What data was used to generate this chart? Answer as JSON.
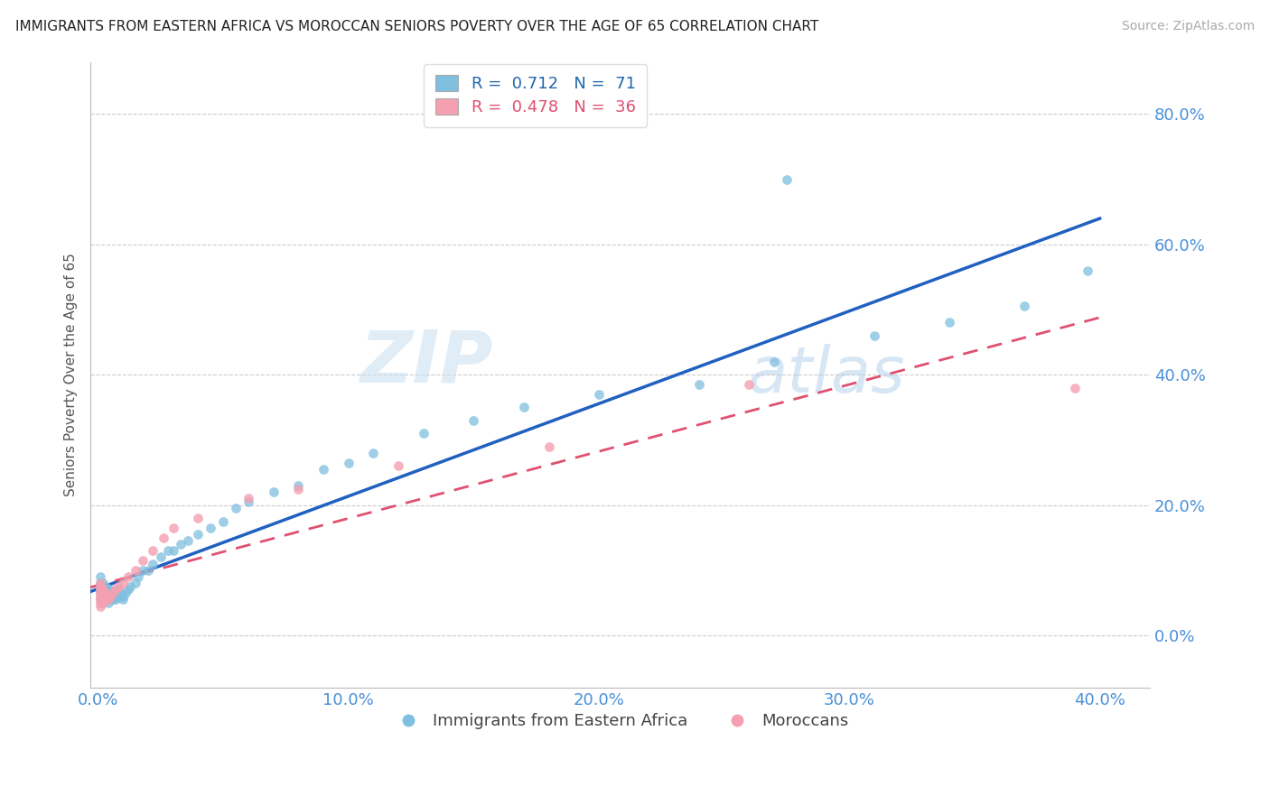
{
  "title": "IMMIGRANTS FROM EASTERN AFRICA VS MOROCCAN SENIORS POVERTY OVER THE AGE OF 65 CORRELATION CHART",
  "source": "Source: ZipAtlas.com",
  "ylabel": "Seniors Poverty Over the Age of 65",
  "watermark": "ZIPatlas",
  "series1_label": "Immigrants from Eastern Africa",
  "series2_label": "Moroccans",
  "series1_color": "#7fbfdf",
  "series2_color": "#f4a0b0",
  "series1_line_color": "#2060c0",
  "series2_line_color": "#e05070",
  "r1": 0.712,
  "n1": 71,
  "r2": 0.478,
  "n2": 36,
  "xlim": [
    -0.003,
    0.42
  ],
  "ylim": [
    -0.08,
    0.88
  ],
  "xticks": [
    0.0,
    0.1,
    0.2,
    0.3,
    0.4
  ],
  "yticks": [
    0.0,
    0.2,
    0.4,
    0.6,
    0.8
  ],
  "series1_x": [
    0.001,
    0.001,
    0.001,
    0.001,
    0.001,
    0.002,
    0.002,
    0.002,
    0.002,
    0.002,
    0.002,
    0.003,
    0.003,
    0.003,
    0.003,
    0.003,
    0.004,
    0.004,
    0.004,
    0.004,
    0.004,
    0.005,
    0.005,
    0.005,
    0.005,
    0.006,
    0.006,
    0.006,
    0.007,
    0.007,
    0.008,
    0.008,
    0.008,
    0.009,
    0.009,
    0.01,
    0.01,
    0.011,
    0.012,
    0.013,
    0.015,
    0.016,
    0.018,
    0.02,
    0.022,
    0.025,
    0.028,
    0.03,
    0.033,
    0.036,
    0.04,
    0.045,
    0.05,
    0.055,
    0.06,
    0.07,
    0.08,
    0.09,
    0.1,
    0.11,
    0.13,
    0.15,
    0.17,
    0.2,
    0.24,
    0.27,
    0.31,
    0.34,
    0.37,
    0.395,
    0.275
  ],
  "series1_y": [
    0.055,
    0.065,
    0.075,
    0.08,
    0.09,
    0.055,
    0.06,
    0.065,
    0.07,
    0.075,
    0.08,
    0.055,
    0.06,
    0.065,
    0.07,
    0.075,
    0.05,
    0.055,
    0.06,
    0.065,
    0.07,
    0.055,
    0.06,
    0.065,
    0.07,
    0.055,
    0.06,
    0.065,
    0.055,
    0.06,
    0.06,
    0.065,
    0.07,
    0.06,
    0.065,
    0.055,
    0.06,
    0.065,
    0.07,
    0.075,
    0.08,
    0.09,
    0.1,
    0.1,
    0.11,
    0.12,
    0.13,
    0.13,
    0.14,
    0.145,
    0.155,
    0.165,
    0.175,
    0.195,
    0.205,
    0.22,
    0.23,
    0.255,
    0.265,
    0.28,
    0.31,
    0.33,
    0.35,
    0.37,
    0.385,
    0.42,
    0.46,
    0.48,
    0.505,
    0.56,
    0.7
  ],
  "series2_x": [
    0.001,
    0.001,
    0.001,
    0.001,
    0.001,
    0.001,
    0.001,
    0.001,
    0.002,
    0.002,
    0.002,
    0.002,
    0.002,
    0.003,
    0.003,
    0.003,
    0.004,
    0.004,
    0.005,
    0.006,
    0.007,
    0.008,
    0.01,
    0.012,
    0.015,
    0.018,
    0.022,
    0.026,
    0.03,
    0.04,
    0.06,
    0.08,
    0.12,
    0.18,
    0.26,
    0.39
  ],
  "series2_y": [
    0.045,
    0.05,
    0.055,
    0.06,
    0.065,
    0.07,
    0.075,
    0.08,
    0.05,
    0.055,
    0.06,
    0.065,
    0.07,
    0.055,
    0.06,
    0.065,
    0.055,
    0.06,
    0.06,
    0.065,
    0.07,
    0.075,
    0.08,
    0.09,
    0.1,
    0.115,
    0.13,
    0.15,
    0.165,
    0.18,
    0.21,
    0.225,
    0.26,
    0.29,
    0.385,
    0.38
  ],
  "legend_r_color": "#2166ac",
  "legend_n_color": "#2166ac"
}
